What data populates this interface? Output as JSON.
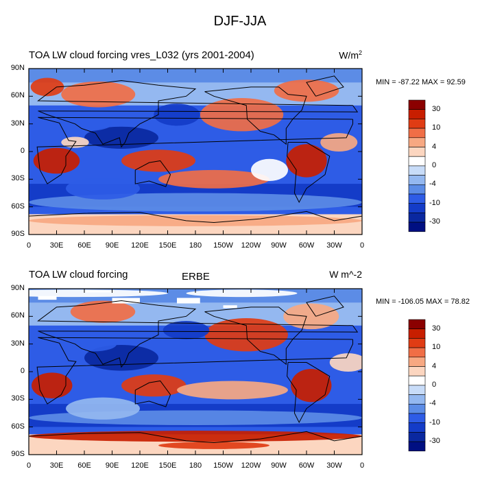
{
  "title": "DJF-JJA",
  "panels": [
    {
      "title": "TOA LW cloud forcing vres_L032 (yrs 2001-2004)",
      "center_label": "",
      "units": "W/m",
      "units_sup": "2",
      "minmax": "MIN = -87.22 MAX =  92.59"
    },
    {
      "title": "TOA LW cloud forcing",
      "center_label": "ERBE",
      "units": "W m^-2",
      "units_sup": "",
      "minmax": "MIN = -106.05 MAX =  78.82"
    }
  ],
  "lat_ticks": [
    "90N",
    "60N",
    "30N",
    "0",
    "30S",
    "60S",
    "90S"
  ],
  "lon_ticks": [
    "0",
    "30E",
    "60E",
    "90E",
    "120E",
    "150E",
    "180",
    "150W",
    "120W",
    "90W",
    "60W",
    "30W",
    "0"
  ],
  "colorbar": {
    "labels": [
      "30",
      "10",
      "4",
      "0",
      "-4",
      "-10",
      "-30"
    ],
    "colors": [
      "#8b0000",
      "#c81e00",
      "#e03c14",
      "#f06e46",
      "#f7a882",
      "#fcd6c0",
      "#ffffff",
      "#c8dcf8",
      "#94b8f0",
      "#5c8ce6",
      "#2e5ce6",
      "#143cc8",
      "#0a28a0",
      "#000f82"
    ]
  }
}
